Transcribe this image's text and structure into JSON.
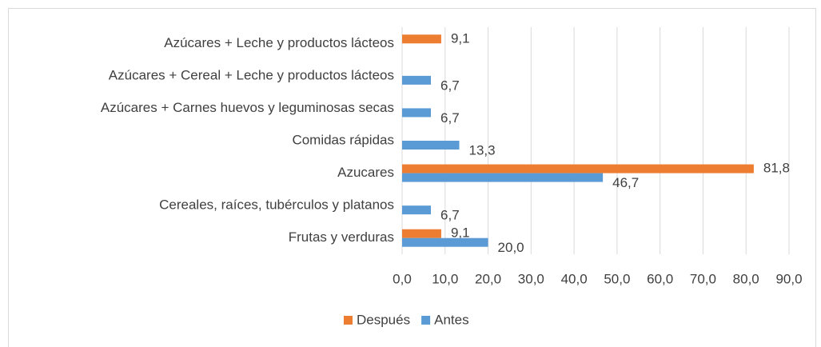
{
  "chart_data": {
    "type": "bar",
    "orientation": "horizontal",
    "categories": [
      "Frutas y verduras",
      "Cereales, raíces, tubérculos y platanos",
      "Azucares",
      "Comidas rápidas",
      "Azúcares + Carnes huevos y leguminosas secas",
      "Azúcares + Cereal + Leche y productos lácteos",
      "Azúcares + Leche y productos lácteos"
    ],
    "series": [
      {
        "name": "Después",
        "color": "#ed7d31",
        "values": [
          9.1,
          null,
          81.8,
          null,
          null,
          null,
          9.1
        ],
        "value_labels": [
          "9,1",
          null,
          "81,8",
          null,
          null,
          null,
          "9,1"
        ]
      },
      {
        "name": "Antes",
        "color": "#5b9bd5",
        "values": [
          20.0,
          6.7,
          46.7,
          13.3,
          6.7,
          6.7,
          null
        ],
        "value_labels": [
          "20,0",
          "6,7",
          "46,7",
          "13,3",
          "6,7",
          "6,7",
          null
        ]
      }
    ],
    "xlim": [
      0,
      90
    ],
    "xticks": [
      {
        "value": 0,
        "label": "0,0"
      },
      {
        "value": 10,
        "label": "10,0"
      },
      {
        "value": 20,
        "label": "20,0"
      },
      {
        "value": 30,
        "label": "30,0"
      },
      {
        "value": 40,
        "label": "40,0"
      },
      {
        "value": 50,
        "label": "50,0"
      },
      {
        "value": 60,
        "label": "60,0"
      },
      {
        "value": 70,
        "label": "70,0"
      },
      {
        "value": 80,
        "label": "80,0"
      },
      {
        "value": 90,
        "label": "90,0"
      }
    ],
    "grid": true,
    "legend": "bottom"
  }
}
